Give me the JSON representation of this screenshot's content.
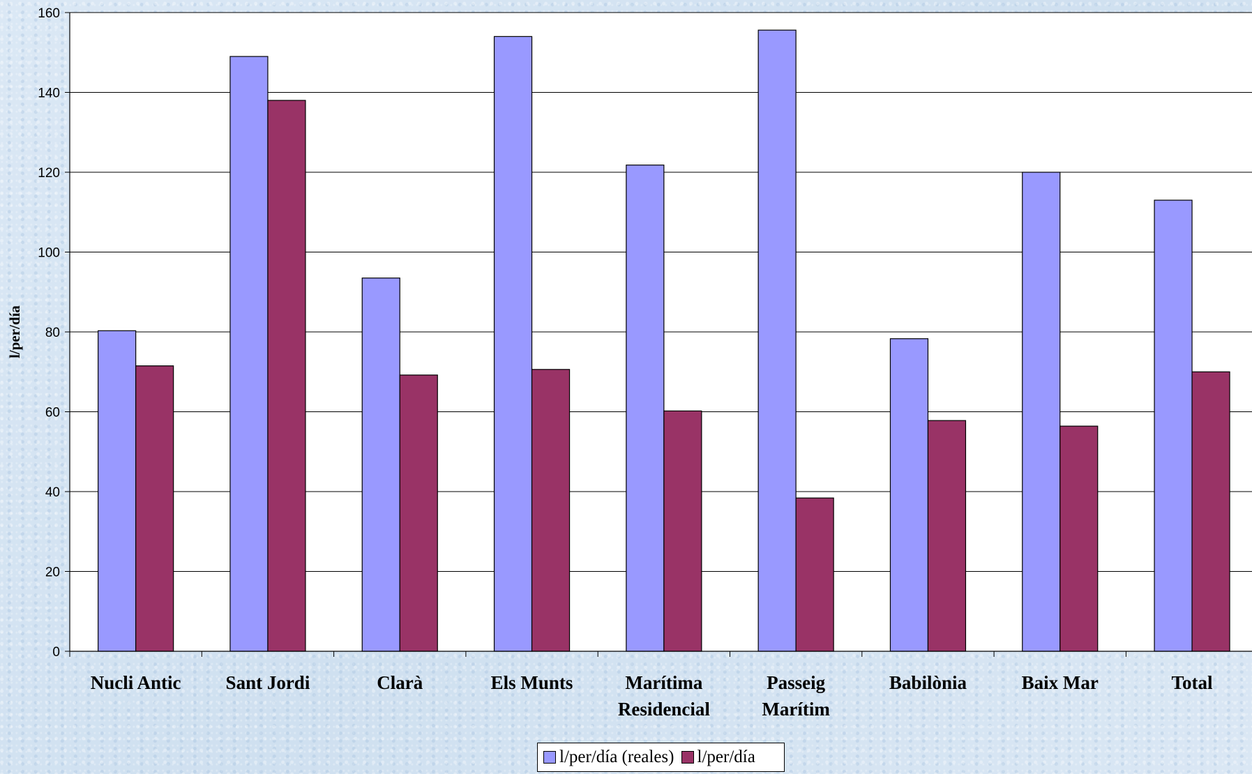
{
  "chart_data": {
    "type": "bar",
    "title": "",
    "ylabel": "l/per/día",
    "xlabel": "",
    "ylim": [
      0,
      160
    ],
    "yticks": [
      0,
      20,
      40,
      60,
      80,
      100,
      120,
      140,
      160
    ],
    "grid": true,
    "legend_position": "bottom",
    "categories": [
      [
        "Nucli Antic"
      ],
      [
        "Sant Jordi"
      ],
      [
        "Clarà"
      ],
      [
        "Els Munts"
      ],
      [
        "Marítima",
        "Residencial"
      ],
      [
        "Passeig",
        "Marítim"
      ],
      [
        "Babilònia"
      ],
      [
        "Baix Mar"
      ],
      [
        "Total"
      ]
    ],
    "series": [
      {
        "name": "l/per/día (reales)",
        "color": "#9999ff",
        "values": [
          80.3,
          149,
          93.5,
          154,
          121.8,
          155.6,
          78.3,
          120,
          113
        ]
      },
      {
        "name": "l/per/día",
        "color": "#993366",
        "values": [
          71.5,
          138,
          69.2,
          70.6,
          60.2,
          38.4,
          57.8,
          56.4,
          70
        ]
      }
    ]
  }
}
